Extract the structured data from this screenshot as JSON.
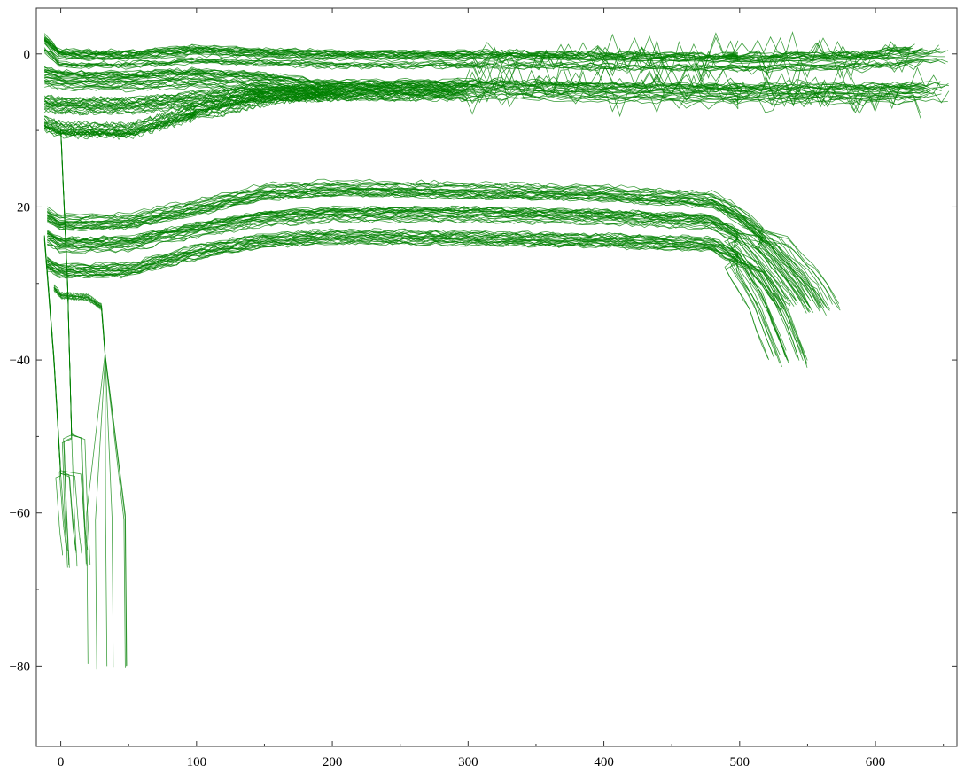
{
  "chart_data": {
    "type": "line",
    "title": "",
    "xlabel": "",
    "ylabel": "",
    "xlim": [
      -18,
      660
    ],
    "ylim": [
      -90.5,
      6
    ],
    "x_ticks": [
      0,
      100,
      200,
      300,
      400,
      500,
      600
    ],
    "y_ticks": [
      0,
      -20,
      -40,
      -60,
      -80
    ],
    "x_tick_labels": [
      "0",
      "100",
      "200",
      "300",
      "400",
      "500",
      "600"
    ],
    "y_tick_labels": [
      "0",
      "−20",
      "−40",
      "−60",
      "−80"
    ],
    "grid": false,
    "legend": "none",
    "line_color": "#008000",
    "series": [
      {
        "x": [
          -12,
          0,
          50,
          100,
          150,
          200,
          300,
          400,
          500,
          600,
          640
        ],
        "y": [
          1.5,
          -0.5,
          -0.6,
          0.0,
          -0.3,
          -0.6,
          -0.6,
          -0.8,
          -1.0,
          -0.7,
          0.0
        ]
      },
      {
        "x": [
          -12,
          0,
          50,
          100,
          150,
          200,
          300,
          400,
          500,
          600,
          640
        ],
        "y": [
          -3.0,
          -3.5,
          -3.6,
          -3.2,
          -3.8,
          -4.8,
          -4.6,
          -5.0,
          -5.2,
          -5.2,
          -5.0
        ]
      },
      {
        "x": [
          -12,
          0,
          50,
          100,
          150,
          200,
          300
        ],
        "y": [
          -6.5,
          -6.8,
          -6.8,
          -6.0,
          -5.2,
          -5.0,
          -5.0
        ]
      },
      {
        "x": [
          -12,
          0,
          50,
          100,
          150,
          200
        ],
        "y": [
          -9.0,
          -9.8,
          -10.0,
          -7.5,
          -5.5,
          -5.0
        ]
      },
      {
        "x": [
          -10,
          0,
          50,
          100,
          150,
          200,
          300,
          400,
          480,
          500,
          520,
          550,
          560
        ],
        "y": [
          -21.0,
          -22.0,
          -21.8,
          -20.0,
          -18.0,
          -17.5,
          -17.8,
          -18.2,
          -19.0,
          -21.0,
          -24.0,
          -30.0,
          -33.0
        ]
      },
      {
        "x": [
          -10,
          0,
          50,
          100,
          150,
          200,
          300,
          400,
          480,
          500,
          520,
          540
        ],
        "y": [
          -24.0,
          -25.0,
          -24.8,
          -23.0,
          -21.5,
          -21.0,
          -21.0,
          -21.3,
          -22.0,
          -24.0,
          -28.0,
          -33.0
        ]
      },
      {
        "x": [
          -10,
          0,
          50,
          100,
          150,
          200,
          300,
          400,
          480,
          500,
          520,
          535
        ],
        "y": [
          -27.5,
          -28.5,
          -28.3,
          -26.0,
          -24.5,
          -24.0,
          -24.2,
          -24.5,
          -25.0,
          -27.0,
          -33.0,
          -40.0
        ]
      },
      {
        "x": [
          -5,
          0,
          20,
          30,
          33,
          33,
          34,
          34
        ],
        "y": [
          -30.5,
          -31.5,
          -31.8,
          -33.0,
          -40.0,
          -60.0,
          -80.0,
          -88.5
        ]
      },
      {
        "x": [
          -12,
          -5,
          0,
          3,
          5
        ],
        "y": [
          -24.0,
          -40.0,
          -55.0,
          -62.0,
          -65.0
        ]
      },
      {
        "x": [
          0,
          5,
          8,
          10,
          12
        ],
        "y": [
          -10.0,
          -30.0,
          -50.0,
          -60.0,
          -67.0
        ]
      }
    ]
  }
}
